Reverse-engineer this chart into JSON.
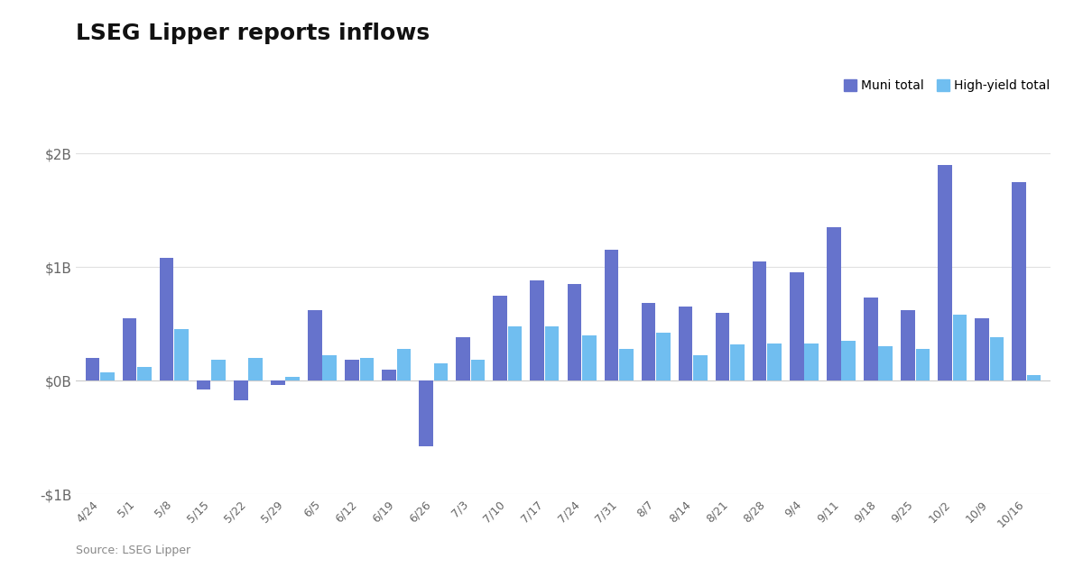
{
  "title": "LSEG Lipper reports inflows",
  "source": "Source: LSEG Lipper",
  "legend": [
    "Muni total",
    "High-yield total"
  ],
  "muni_color": "#6673cc",
  "hy_color": "#70bef0",
  "background_color": "#ffffff",
  "labels": [
    "4/24",
    "5/1",
    "5/8",
    "5/15",
    "5/22",
    "5/29",
    "6/5",
    "6/12",
    "6/19",
    "6/26",
    "7/3",
    "7/10",
    "7/17",
    "7/24",
    "7/31",
    "8/7",
    "8/14",
    "8/21",
    "8/28",
    "9/4",
    "9/11",
    "9/18",
    "9/25",
    "10/2",
    "10/9",
    "10/16"
  ],
  "muni": [
    0.2,
    0.55,
    1.08,
    -0.08,
    -0.17,
    -0.04,
    0.62,
    0.18,
    0.1,
    -0.58,
    0.38,
    0.75,
    0.88,
    0.85,
    1.15,
    0.68,
    0.65,
    0.6,
    1.05,
    0.95,
    1.35,
    0.73,
    0.62,
    1.9,
    0.55,
    1.75
  ],
  "hy": [
    0.07,
    0.12,
    0.45,
    0.18,
    0.2,
    0.03,
    0.22,
    0.2,
    0.28,
    0.15,
    0.18,
    0.48,
    0.48,
    0.4,
    0.28,
    0.42,
    0.22,
    0.32,
    0.33,
    0.33,
    0.35,
    0.3,
    0.28,
    0.58,
    0.38,
    0.05
  ],
  "ylim": [
    -1.0,
    2.0
  ],
  "yticks": [
    -1.0,
    0.0,
    1.0,
    2.0
  ],
  "ytick_labels": [
    "-$1B",
    "$0B",
    "$1B",
    "$2B"
  ]
}
